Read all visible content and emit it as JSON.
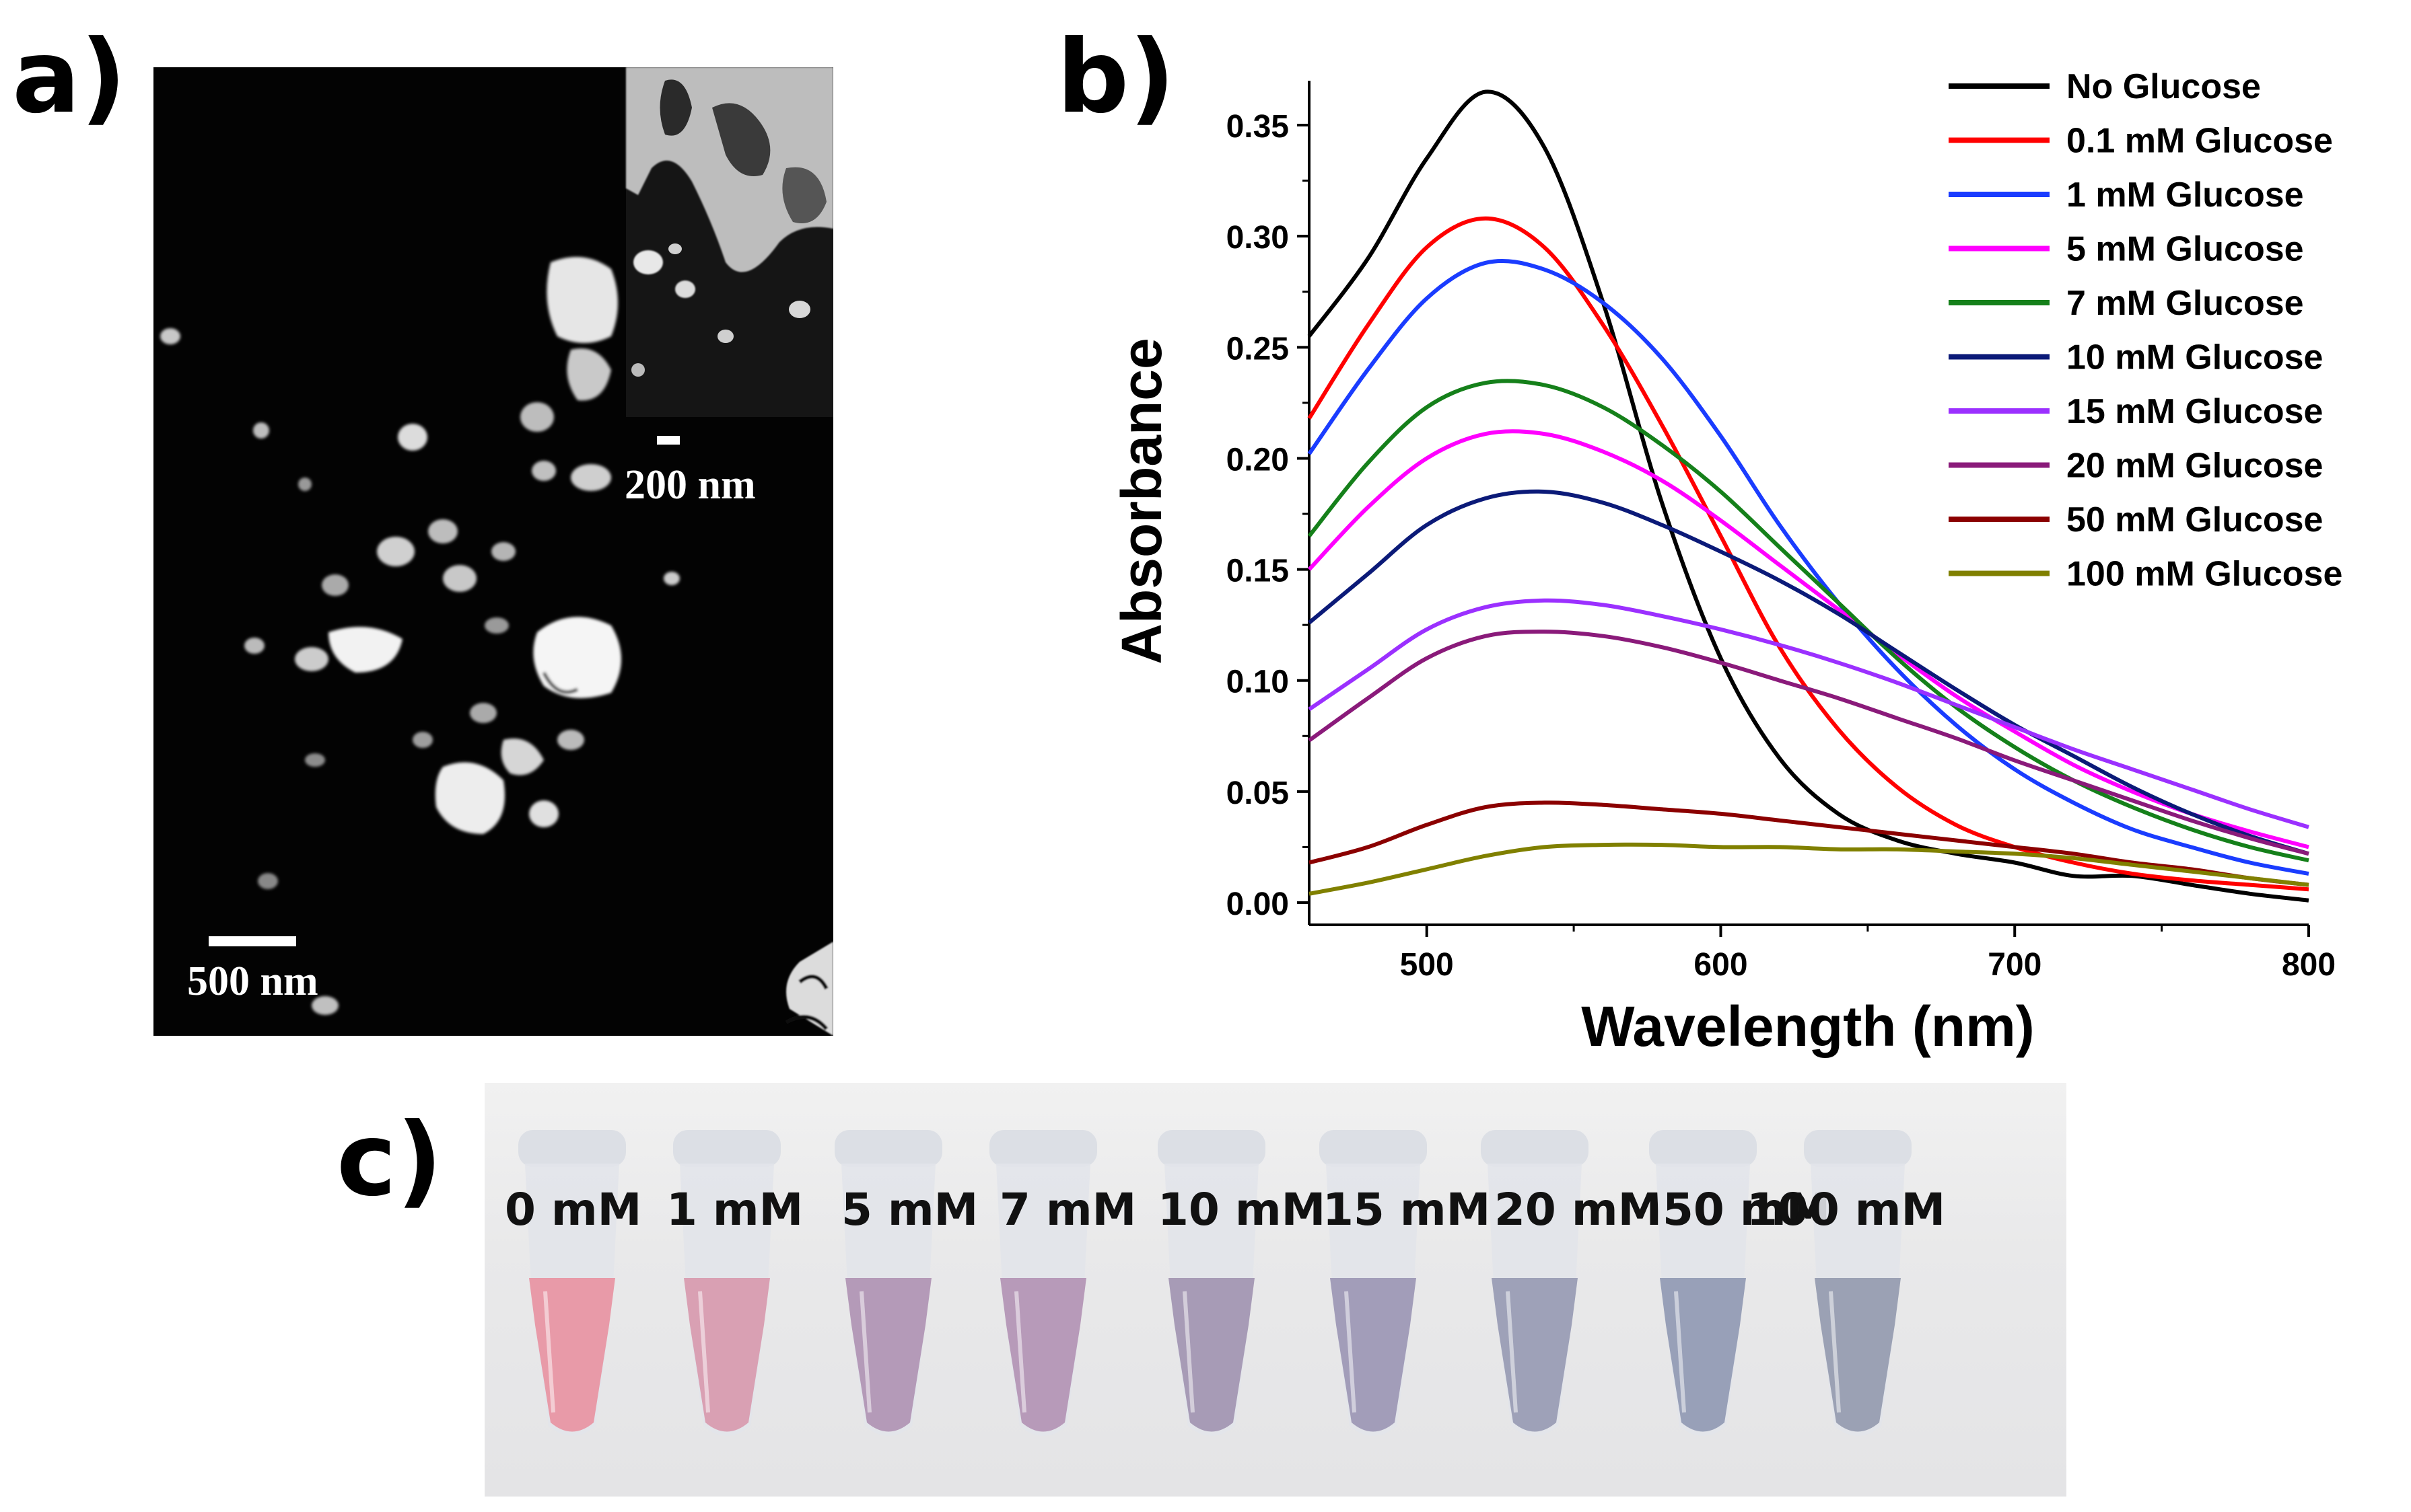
{
  "panels": {
    "a": {
      "label": "a)",
      "scalebar_main": "500 nm",
      "scalebar_inset": "200 nm"
    },
    "b": {
      "label": "b)"
    },
    "c": {
      "label": "c)",
      "tubes": [
        {
          "label": "0 mM",
          "color": "#e89aa8"
        },
        {
          "label": "1 mM",
          "color": "#d9a0b3"
        },
        {
          "label": "5 mM",
          "color": "#b49ab8"
        },
        {
          "label": "7 mM",
          "color": "#b79ab9"
        },
        {
          "label": "10 mM",
          "color": "#a79bb6"
        },
        {
          "label": "15 mM",
          "color": "#a29db9"
        },
        {
          "label": "20 mM",
          "color": "#9ea1b8"
        },
        {
          "label": "50 mM",
          "color": "#98a0b8"
        },
        {
          "label": "100 mM",
          "color": "#9ba1b4"
        }
      ]
    }
  },
  "chart_data": {
    "type": "line",
    "title": "",
    "xlabel": "Wavelength (nm)",
    "ylabel": "Absorbance",
    "xlim": [
      460,
      800
    ],
    "ylim": [
      -0.01,
      0.37
    ],
    "xticks": [
      500,
      600,
      700,
      800
    ],
    "yticks": [
      "0.00",
      "0.05",
      "0.10",
      "0.15",
      "0.20",
      "0.25",
      "0.30",
      "0.35"
    ],
    "legend_position": "top-right",
    "x": [
      460,
      480,
      500,
      520,
      540,
      560,
      580,
      600,
      620,
      640,
      660,
      680,
      700,
      720,
      740,
      760,
      780,
      800
    ],
    "series": [
      {
        "name": "No Glucose",
        "color": "#000000",
        "values": [
          0.255,
          0.29,
          0.335,
          0.365,
          0.34,
          0.27,
          0.18,
          0.11,
          0.065,
          0.04,
          0.028,
          0.022,
          0.018,
          0.012,
          0.012,
          0.008,
          0.004,
          0.001
        ]
      },
      {
        "name": "0.1 mM Glucose",
        "color": "#ff0000",
        "values": [
          0.218,
          0.26,
          0.295,
          0.308,
          0.295,
          0.26,
          0.215,
          0.165,
          0.115,
          0.078,
          0.052,
          0.035,
          0.025,
          0.018,
          0.013,
          0.01,
          0.008,
          0.006
        ]
      },
      {
        "name": "1 mM Glucose",
        "color": "#1a3cff",
        "values": [
          0.202,
          0.24,
          0.272,
          0.288,
          0.285,
          0.27,
          0.245,
          0.21,
          0.17,
          0.135,
          0.105,
          0.08,
          0.06,
          0.045,
          0.033,
          0.025,
          0.018,
          0.013
        ]
      },
      {
        "name": "5 mM Glucose",
        "color": "#ff00ff",
        "values": [
          0.15,
          0.178,
          0.2,
          0.211,
          0.211,
          0.203,
          0.19,
          0.172,
          0.152,
          0.132,
          0.112,
          0.093,
          0.077,
          0.062,
          0.05,
          0.04,
          0.032,
          0.025
        ]
      },
      {
        "name": "7 mM Glucose",
        "color": "#15801a",
        "values": [
          0.165,
          0.198,
          0.223,
          0.234,
          0.233,
          0.223,
          0.206,
          0.185,
          0.16,
          0.135,
          0.11,
          0.088,
          0.07,
          0.055,
          0.043,
          0.033,
          0.025,
          0.019
        ]
      },
      {
        "name": "10 mM Glucose",
        "color": "#0b1a78",
        "values": [
          0.126,
          0.148,
          0.17,
          0.182,
          0.185,
          0.18,
          0.17,
          0.158,
          0.145,
          0.13,
          0.113,
          0.096,
          0.08,
          0.066,
          0.052,
          0.04,
          0.03,
          0.022
        ]
      },
      {
        "name": "15 mM Glucose",
        "color": "#9b30ff",
        "values": [
          0.087,
          0.105,
          0.123,
          0.133,
          0.136,
          0.134,
          0.129,
          0.123,
          0.116,
          0.108,
          0.099,
          0.089,
          0.079,
          0.069,
          0.06,
          0.051,
          0.042,
          0.034
        ]
      },
      {
        "name": "20 mM Glucose",
        "color": "#8a1a7a",
        "values": [
          0.073,
          0.092,
          0.11,
          0.12,
          0.122,
          0.12,
          0.115,
          0.108,
          0.1,
          0.092,
          0.083,
          0.074,
          0.064,
          0.055,
          0.046,
          0.037,
          0.029,
          0.022
        ]
      },
      {
        "name": "50 mM Glucose",
        "color": "#8b0000",
        "values": [
          0.018,
          0.025,
          0.035,
          0.043,
          0.045,
          0.044,
          0.042,
          0.04,
          0.037,
          0.034,
          0.031,
          0.028,
          0.025,
          0.022,
          0.018,
          0.015,
          0.011,
          0.008
        ]
      },
      {
        "name": "100 mM Glucose",
        "color": "#808000",
        "values": [
          0.004,
          0.009,
          0.015,
          0.021,
          0.025,
          0.026,
          0.026,
          0.025,
          0.025,
          0.024,
          0.024,
          0.023,
          0.022,
          0.02,
          0.017,
          0.014,
          0.011,
          0.008
        ]
      }
    ]
  }
}
